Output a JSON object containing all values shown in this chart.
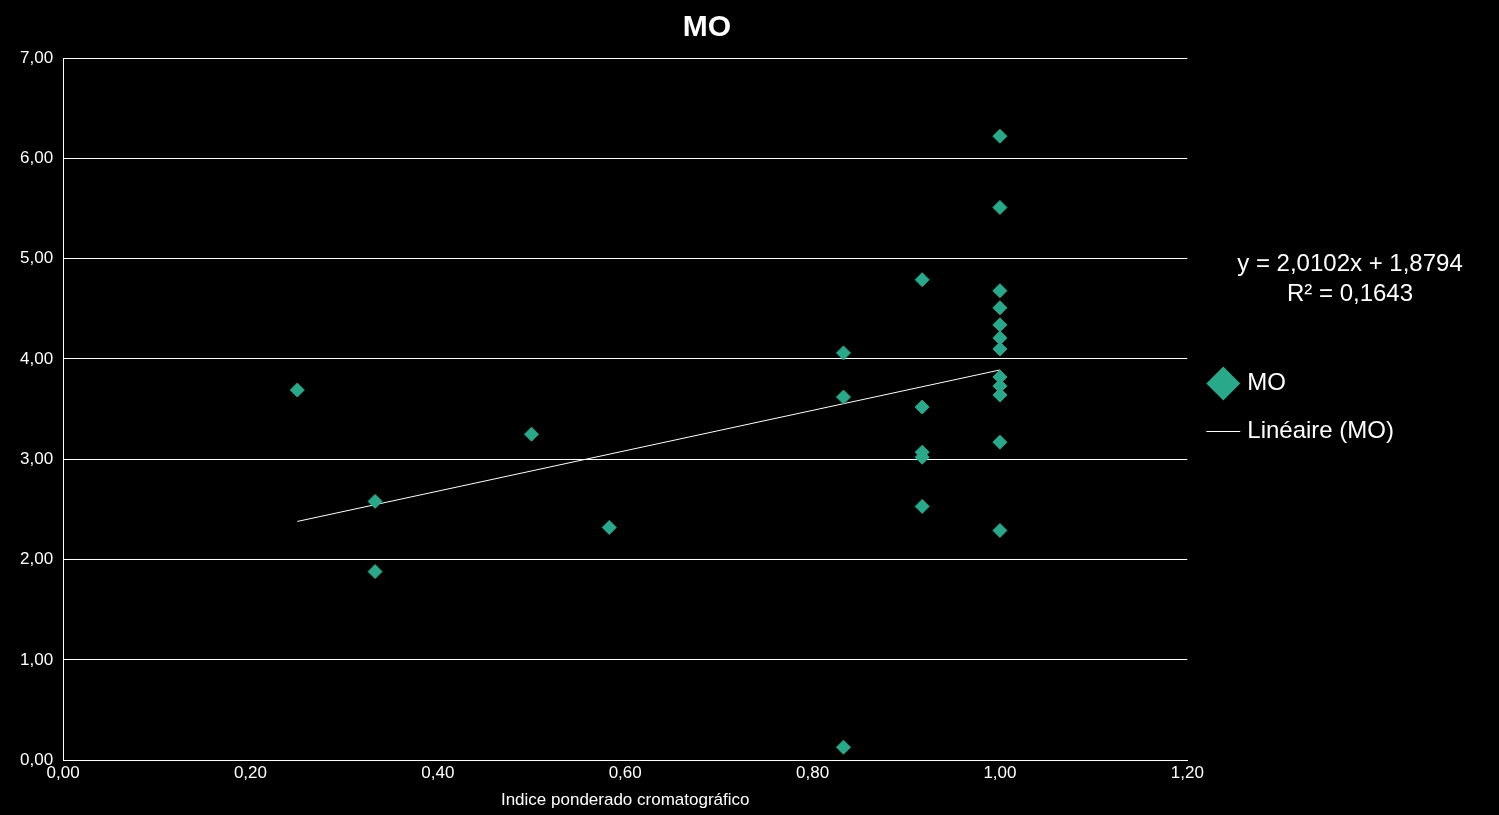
{
  "chart_data": {
    "type": "scatter",
    "title": "MO",
    "xlabel": "Indice ponderado cromatográfico",
    "series": [
      {
        "name": "MO",
        "color": "#2aa88a",
        "marker": "diamond",
        "x": [
          0.25,
          0.333,
          0.333,
          0.5,
          0.583,
          0.833,
          0.833,
          0.833,
          0.917,
          0.917,
          0.917,
          0.917,
          0.917,
          1,
          1,
          1,
          1,
          1,
          1,
          1,
          1,
          1,
          1,
          1,
          1
        ],
        "values": [
          3.69,
          2.58,
          1.88,
          3.25,
          2.32,
          4.06,
          3.62,
          0.13,
          4.79,
          3.52,
          3.07,
          3.02,
          2.53,
          6.22,
          5.51,
          4.68,
          4.51,
          4.34,
          4.21,
          4.1,
          3.82,
          3.73,
          3.64,
          3.17,
          2.29
        ]
      },
      {
        "name": "Linéaire (MO)",
        "type": "line",
        "color": "#ffffff",
        "marker": "none",
        "line_style": "solid",
        "x": [
          0.25,
          1
        ],
        "values": [
          2.38,
          3.89
        ]
      }
    ],
    "xlim": [
      0,
      1.2
    ],
    "ylim": [
      0,
      7
    ],
    "xticks": [
      {
        "value": 0,
        "label": "0,00"
      },
      {
        "value": 0.2,
        "label": "0,20"
      },
      {
        "value": 0.4,
        "label": "0,40"
      },
      {
        "value": 0.6,
        "label": "0,60"
      },
      {
        "value": 0.8,
        "label": "0,80"
      },
      {
        "value": 1,
        "label": "1,00"
      },
      {
        "value": 1.2,
        "label": "1,20"
      }
    ],
    "yticks": [
      {
        "value": 0,
        "label": "0,00"
      },
      {
        "value": 1,
        "label": "1,00"
      },
      {
        "value": 2,
        "label": "2,00"
      },
      {
        "value": 3,
        "label": "3,00"
      },
      {
        "value": 4,
        "label": "4,00"
      },
      {
        "value": 5,
        "label": "5,00"
      },
      {
        "value": 6,
        "label": "6,00"
      },
      {
        "value": 7,
        "label": "7,00"
      }
    ],
    "grid": "y",
    "legend": "right",
    "annotations": [
      "y = 2,0102x + 1,8794",
      "R² = 0,1643"
    ]
  }
}
